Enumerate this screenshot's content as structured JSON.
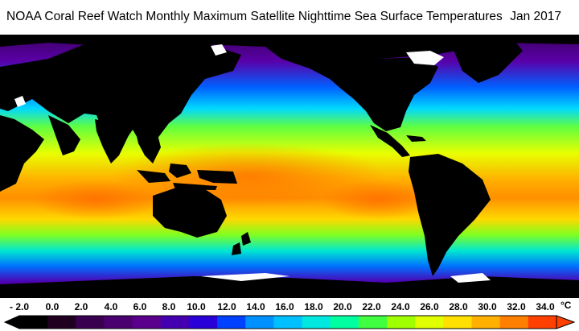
{
  "header": {
    "title": "NOAA Coral Reef Watch Monthly Maximum Satellite Nighttime Sea Surface Temperatures",
    "date": "Jan 2017"
  },
  "legend": {
    "unit": "°C",
    "ticks": [
      "- 2.0",
      "0.0",
      "2.0",
      "4.0",
      "6.0",
      "8.0",
      "10.0",
      "12.0",
      "14.0",
      "16.0",
      "18.0",
      "20.0",
      "22.0",
      "24.0",
      "26.0",
      "28.0",
      "30.0",
      "32.0",
      "34.0"
    ],
    "colors": [
      "#000000",
      "#200020",
      "#3a0050",
      "#4b0070",
      "#5a008c",
      "#4400b0",
      "#2a00d8",
      "#0040ff",
      "#0090ff",
      "#00c0ff",
      "#00e8e0",
      "#00ffa0",
      "#40ff40",
      "#a0ff00",
      "#e0ff00",
      "#ffe000",
      "#ffb000",
      "#ff8000",
      "#ff4000"
    ]
  },
  "map": {
    "land_color": "#000000",
    "ice_color": "#ffffff"
  }
}
